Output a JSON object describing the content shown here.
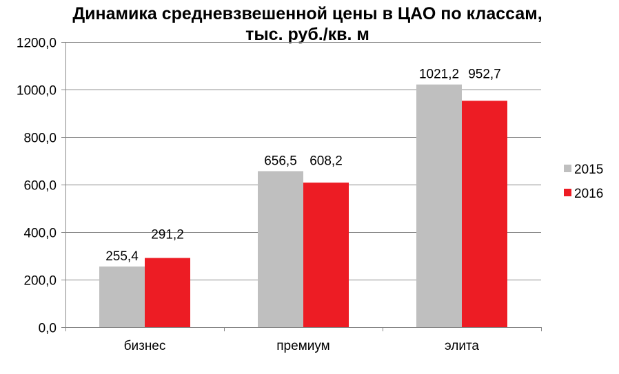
{
  "chart_data": {
    "type": "bar",
    "title": "Динамика средневзвешенной цены в ЦАО по классам,",
    "subtitle": "тыс. руб./кв. м",
    "categories": [
      "бизнес",
      "премиум",
      "элита"
    ],
    "series": [
      {
        "name": "2015",
        "values": [
          255.4,
          656.5,
          1021.2
        ],
        "labels": [
          "255,4",
          "656,5",
          "1021,2"
        ],
        "color": "#bfbfbf"
      },
      {
        "name": "2016",
        "values": [
          291.2,
          608.2,
          952.7
        ],
        "labels": [
          "291,2",
          "608,2",
          "952,7"
        ],
        "color": "#ed1c24"
      }
    ],
    "ylim": [
      0,
      1200
    ],
    "yticks": [
      0,
      200,
      400,
      600,
      800,
      1000,
      1200
    ],
    "ytick_labels": [
      "0,0",
      "200,0",
      "400,0",
      "600,0",
      "800,0",
      "1000,0",
      "1200,0"
    ],
    "grid": true,
    "legend_position": "right"
  }
}
